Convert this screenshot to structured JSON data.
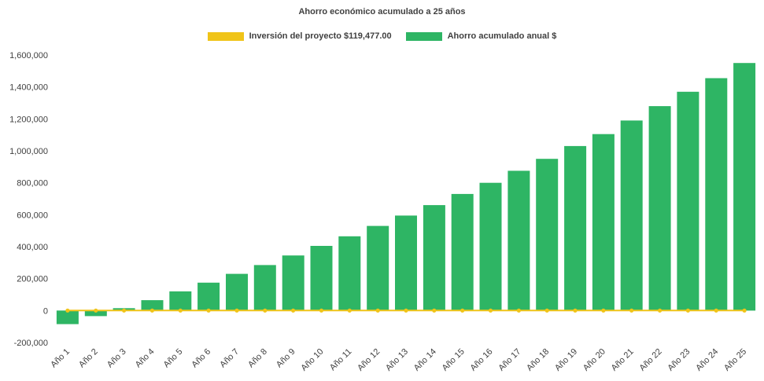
{
  "chart_data": {
    "type": "bar",
    "title": "Ahorro económico acumulado a 25 años",
    "legend": {
      "investment": "Inversión del proyecto $119,477.00",
      "savings": "Ahorro acumulado anual $"
    },
    "legend_position": "top",
    "grid": false,
    "categories": [
      "Año 1",
      "Año 2",
      "Año 3",
      "Año 4",
      "Año 5",
      "Año 6",
      "Año 7",
      "Año 8",
      "Año 9",
      "Año 10",
      "Año 11",
      "Año 12",
      "Año 13",
      "Año 14",
      "Año 15",
      "Año 16",
      "Año 17",
      "Año 18",
      "Año 19",
      "Año 20",
      "Año 21",
      "Año 22",
      "Año 23",
      "Año 24",
      "Año 25"
    ],
    "series": [
      {
        "name": "Ahorro acumulado anual $",
        "type": "bar",
        "values": [
          -85000,
          -35000,
          15000,
          65000,
          120000,
          175000,
          230000,
          285000,
          345000,
          405000,
          465000,
          530000,
          595000,
          660000,
          730000,
          800000,
          875000,
          950000,
          1030000,
          1105000,
          1190000,
          1280000,
          1370000,
          1455000,
          1550000
        ]
      },
      {
        "name": "Inversión del proyecto $119,477.00",
        "type": "line",
        "constant_y": 0
      }
    ],
    "xlabel": "",
    "ylabel": "",
    "ylim": [
      -200000,
      1600000
    ],
    "yticks": [
      1600000,
      1400000,
      1200000,
      1000000,
      800000,
      600000,
      400000,
      200000,
      0,
      -200000
    ],
    "colors": {
      "savings": "#2eb564",
      "investment": "#f0c418",
      "text": "#404040"
    }
  }
}
